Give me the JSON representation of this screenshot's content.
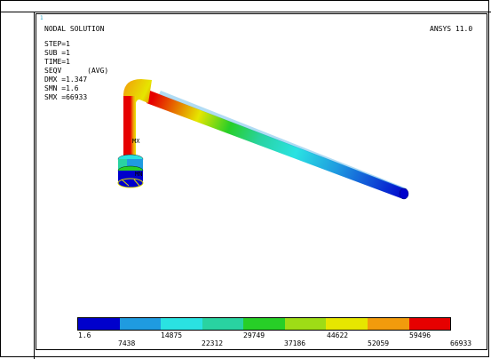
{
  "window": {
    "number": "1"
  },
  "header": {
    "title": "NODAL SOLUTION",
    "version": "ANSYS 11.0",
    "info": [
      "STEP=1",
      "SUB =1",
      "TIME=1",
      "SEQV      (AVG)",
      "DMX =1.347",
      "SMN =1.6",
      "SMX =66933"
    ]
  },
  "markers": {
    "mx": "MX",
    "mn": "MN"
  },
  "legend": {
    "colors": [
      "#0000cc",
      "#1f9be0",
      "#2ae2e2",
      "#29d3a1",
      "#27cf27",
      "#9edc16",
      "#e6e600",
      "#f29b0c",
      "#e60000"
    ],
    "values_top": [
      "1.6",
      "14875",
      "29749",
      "44622",
      "59496"
    ],
    "values_bottom": [
      "7438",
      "22312",
      "37186",
      "52059",
      "66933"
    ]
  }
}
